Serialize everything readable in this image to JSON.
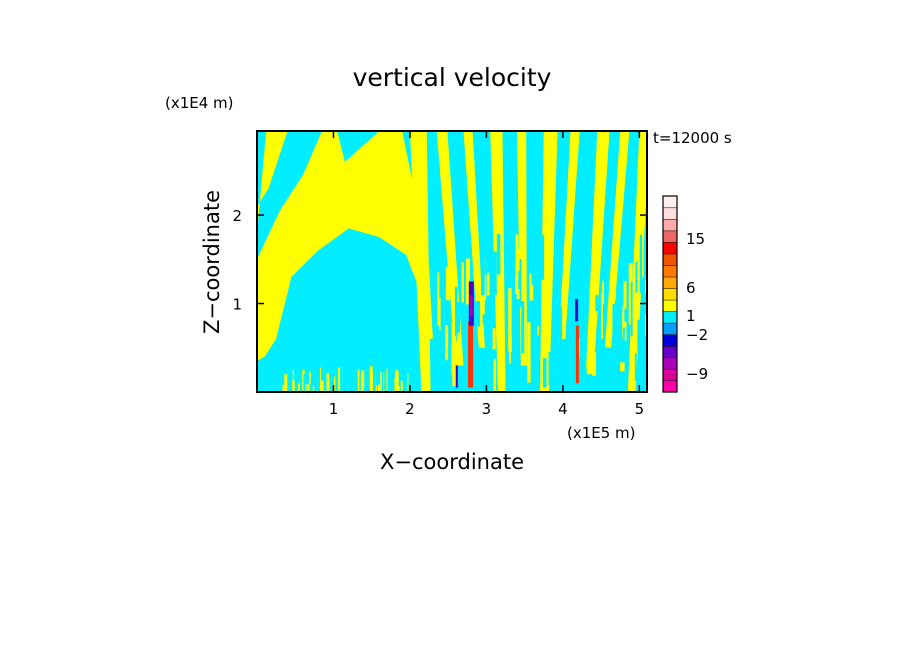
{
  "chart_data": {
    "type": "heatmap",
    "title": "vertical velocity",
    "xlabel": "X−coordinate",
    "ylabel": "Z−coordinate",
    "x_unit": "(x1E5 m)",
    "y_unit": "(x1E4 m)",
    "time_label": "t=12000 s",
    "xlim": [
      0,
      5.1
    ],
    "ylim": [
      0,
      2.95
    ],
    "x_ticks": [
      1,
      2,
      3,
      4,
      5
    ],
    "y_ticks": [
      1,
      2
    ],
    "colorbar": {
      "labels": [
        "15",
        "6",
        "1",
        "−2",
        "−9"
      ],
      "label_values": [
        15,
        6,
        1,
        -2,
        -9
      ],
      "levels": [
        {
          "color": "#ff00aa"
        },
        {
          "color": "#dd0099"
        },
        {
          "color": "#aa00bb"
        },
        {
          "color": "#6600cc"
        },
        {
          "color": "#0000dd"
        },
        {
          "color": "#00a0ff"
        },
        {
          "color": "#00eeff"
        },
        {
          "color": "#ffff00"
        },
        {
          "color": "#ffdd00"
        },
        {
          "color": "#ffaa00"
        },
        {
          "color": "#ff7700"
        },
        {
          "color": "#ee5500"
        },
        {
          "color": "#ff0000"
        },
        {
          "color": "#ee6666"
        },
        {
          "color": "#ffaaaa"
        },
        {
          "color": "#ffdddd"
        },
        {
          "color": "#fff0f0"
        }
      ]
    },
    "field_colors": {
      "positive_weak": "#ffff00",
      "negative_weak": "#00eeff",
      "strong_up": "#ff3300",
      "strong_down": "#4400cc"
    }
  }
}
